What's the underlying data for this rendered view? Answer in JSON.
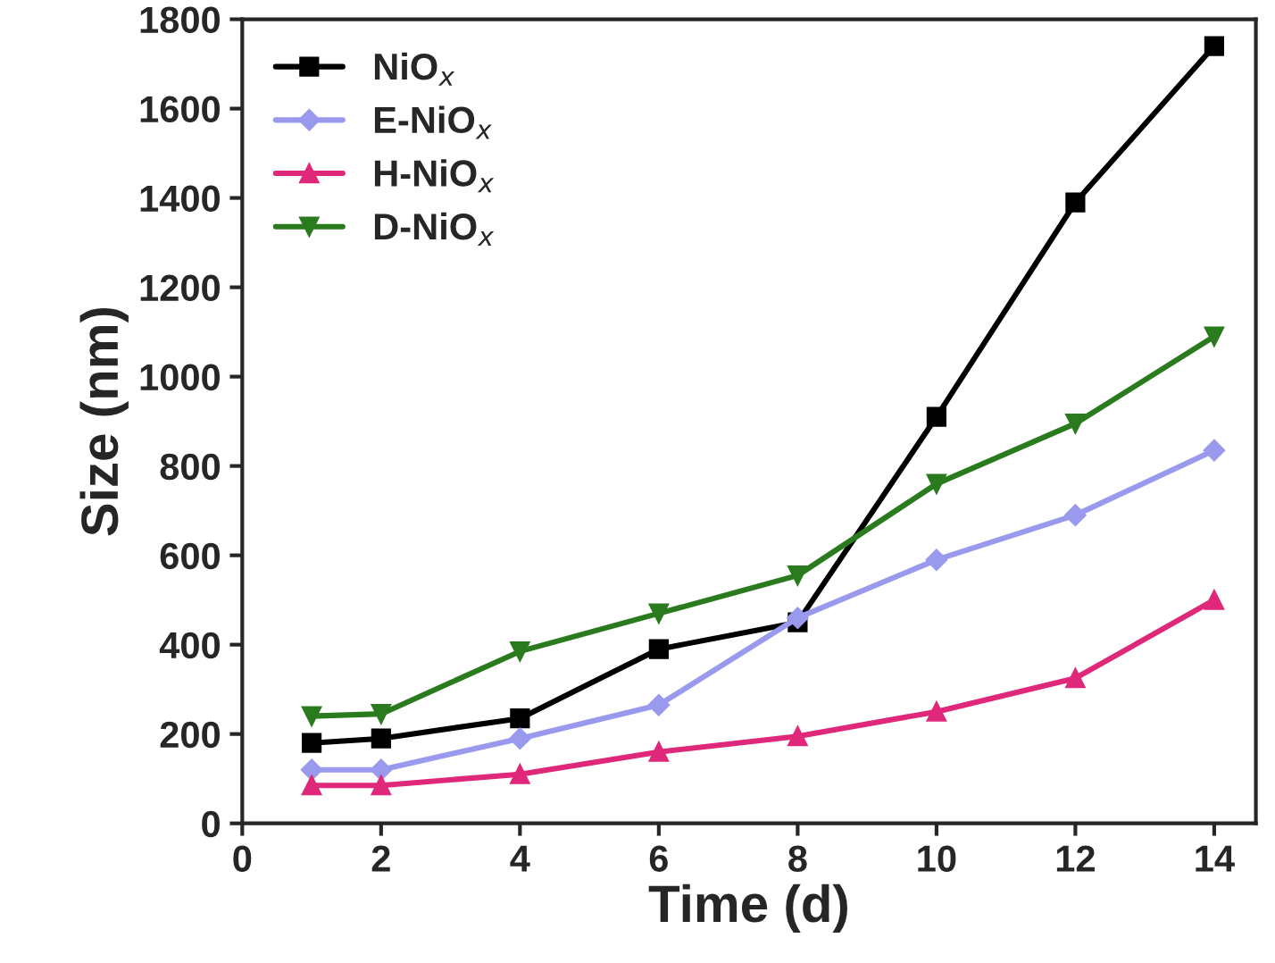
{
  "chart_data": {
    "type": "line",
    "xlabel": "Time (d)",
    "ylabel": "Size (nm)",
    "x": [
      1,
      2,
      4,
      6,
      8,
      10,
      12,
      14
    ],
    "series": [
      {
        "name": "NiO$_{x}$",
        "color": "#000000",
        "marker": "square",
        "values": [
          180,
          190,
          235,
          390,
          450,
          910,
          1390,
          1740
        ]
      },
      {
        "name": "E-NiO$_{x}$",
        "color": "#9999ee",
        "marker": "diamond",
        "values": [
          120,
          120,
          190,
          265,
          460,
          590,
          690,
          835
        ]
      },
      {
        "name": "H-NiO$_{x}$",
        "color": "#e0287a",
        "marker": "triangle",
        "values": [
          85,
          85,
          110,
          160,
          195,
          250,
          325,
          500
        ]
      },
      {
        "name": "D-NiO$_{x}$",
        "color": "#2a7a1e",
        "marker": "triangle_down",
        "values": [
          240,
          245,
          385,
          470,
          555,
          760,
          895,
          1090
        ]
      }
    ],
    "xlim": [
      0,
      14.6
    ],
    "xticks": [
      0,
      2,
      4,
      6,
      8,
      10,
      12,
      14
    ],
    "ylim": [
      0,
      1800
    ],
    "yticks": [
      0,
      200,
      400,
      600,
      800,
      1000,
      1200,
      1400,
      1600,
      1800
    ],
    "grid": false,
    "legend": "top left",
    "line_style": "solid"
  }
}
